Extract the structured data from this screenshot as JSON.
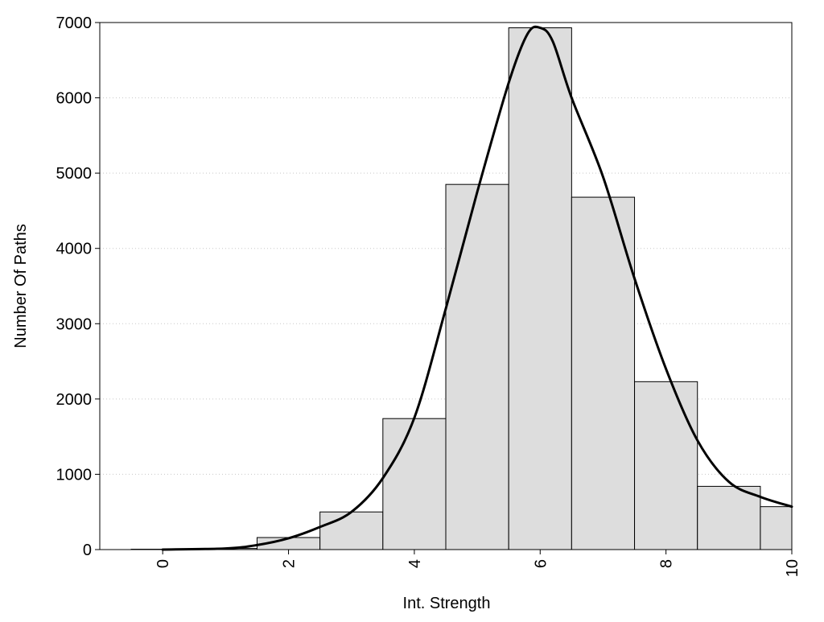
{
  "chart_data": {
    "type": "bar",
    "title": "",
    "xlabel": "Int. Strength",
    "ylabel": "Number Of Paths",
    "xlim": [
      -1,
      10
    ],
    "ylim": [
      0,
      7000
    ],
    "grid": "horizontal",
    "x_ticks": [
      0,
      2,
      4,
      6,
      8,
      10
    ],
    "x_tick_labels": [
      "0",
      "2",
      "4",
      "6",
      "8",
      "10"
    ],
    "y_ticks": [
      0,
      1000,
      2000,
      3000,
      4000,
      5000,
      6000,
      7000
    ],
    "y_tick_labels": [
      "0",
      "1000",
      "2000",
      "3000",
      "4000",
      "5000",
      "6000",
      "7000"
    ],
    "bin_width": 1,
    "categories": [
      0,
      1,
      2,
      3,
      4,
      5,
      6,
      7,
      8,
      9,
      10
    ],
    "values": [
      5,
      15,
      160,
      500,
      1740,
      4850,
      6930,
      4680,
      2230,
      840,
      570
    ],
    "density_curve": {
      "x": [
        0,
        1,
        1.5,
        2,
        2.5,
        3,
        3.5,
        4,
        4.5,
        5,
        5.5,
        5.8,
        6,
        6.2,
        6.5,
        7,
        7.5,
        8,
        8.5,
        9,
        9.5,
        10
      ],
      "y": [
        0,
        15,
        60,
        150,
        300,
        500,
        950,
        1750,
        3200,
        4750,
        6200,
        6850,
        6930,
        6750,
        6000,
        4950,
        3600,
        2400,
        1450,
        900,
        700,
        570
      ]
    }
  }
}
